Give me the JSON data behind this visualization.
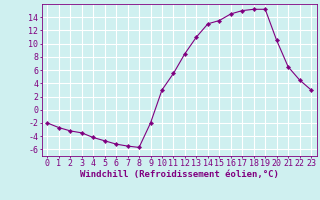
{
  "x": [
    0,
    1,
    2,
    3,
    4,
    5,
    6,
    7,
    8,
    9,
    10,
    11,
    12,
    13,
    14,
    15,
    16,
    17,
    18,
    19,
    20,
    21,
    22,
    23
  ],
  "y": [
    -2.0,
    -2.7,
    -3.2,
    -3.5,
    -4.2,
    -4.7,
    -5.2,
    -5.5,
    -5.7,
    -2.0,
    3.0,
    5.5,
    8.5,
    11.0,
    13.0,
    13.5,
    14.5,
    15.0,
    15.2,
    15.2,
    10.5,
    6.5,
    4.5,
    3.0
  ],
  "line_color": "#800080",
  "marker": "D",
  "marker_size": 2.2,
  "bg_color": "#cff0f0",
  "grid_color": "#ffffff",
  "xlabel": "Windchill (Refroidissement éolien,°C)",
  "xlabel_fontsize": 6.5,
  "tick_fontsize": 6.0,
  "ylim": [
    -7,
    16
  ],
  "yticks": [
    -6,
    -4,
    -2,
    0,
    2,
    4,
    6,
    8,
    10,
    12,
    14
  ],
  "axis_color": "#800080"
}
